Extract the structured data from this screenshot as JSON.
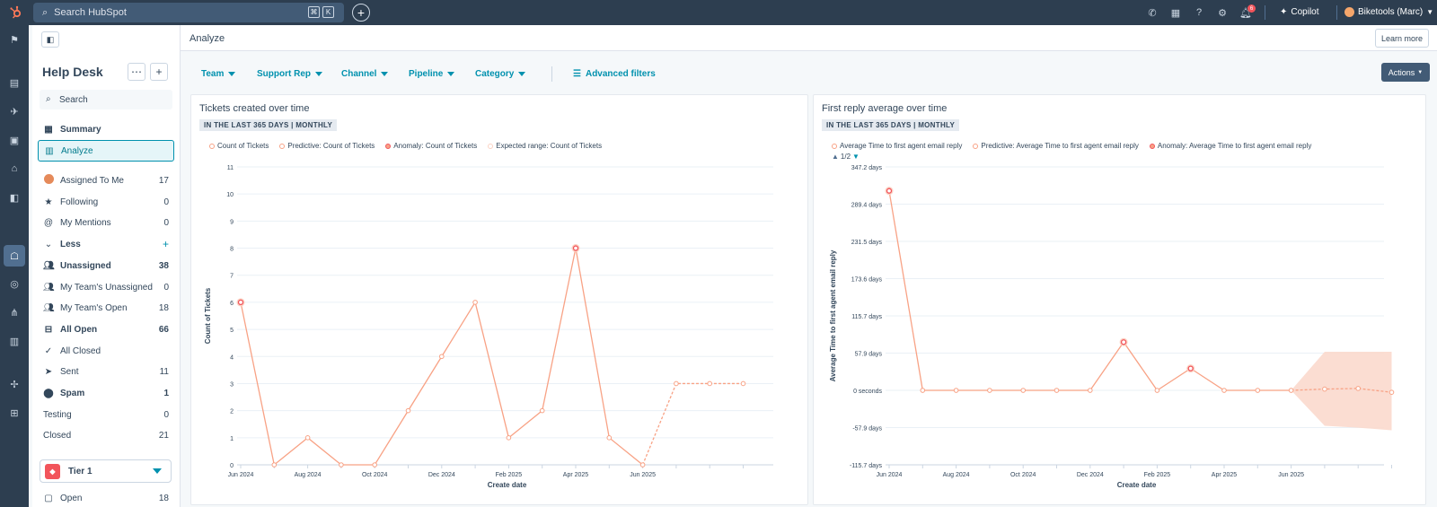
{
  "topbar": {
    "search_placeholder": "Search HubSpot",
    "kbd_cmd": "⌘",
    "kbd_k": "K",
    "notifications_count": "6",
    "copilot_label": "Copilot",
    "account_label": "Biketools (Marc)"
  },
  "sidebar": {
    "title": "Help Desk",
    "search_placeholder": "Search",
    "nav": [
      {
        "label": "Summary",
        "icon": "grid-icon"
      },
      {
        "label": "Analyze",
        "icon": "chart-icon"
      }
    ],
    "views": [
      {
        "label": "Assigned To Me",
        "count": "17",
        "icon": "avatar"
      },
      {
        "label": "Following",
        "count": "0",
        "icon": "star-icon"
      },
      {
        "label": "My Mentions",
        "count": "0",
        "icon": "at-icon"
      }
    ],
    "less_label": "Less",
    "inbox_views": [
      {
        "label": "Unassigned",
        "count": "38",
        "bold": true,
        "icon": "users-icon"
      },
      {
        "label": "My Team's Unassigned",
        "count": "0",
        "bold": false,
        "icon": "users-icon"
      },
      {
        "label": "My Team's Open",
        "count": "18",
        "bold": false,
        "icon": "users-icon"
      },
      {
        "label": "All Open",
        "count": "66",
        "bold": true,
        "icon": "inbox-icon"
      },
      {
        "label": "All Closed",
        "count": "",
        "bold": false,
        "icon": "check-icon"
      },
      {
        "label": "Sent",
        "count": "11",
        "bold": false,
        "icon": "send-icon"
      },
      {
        "label": "Spam",
        "count": "1",
        "bold": true,
        "icon": "spam-icon"
      },
      {
        "label": "Testing",
        "count": "0",
        "bold": false,
        "icon": ""
      },
      {
        "label": "Closed",
        "count": "21",
        "bold": false,
        "icon": ""
      }
    ],
    "tier_label": "Tier 1",
    "partial_label": "Open",
    "partial_count": "18"
  },
  "main": {
    "page_title": "Analyze",
    "learn_more": "Learn more",
    "filters": [
      "Team",
      "Support Rep",
      "Channel",
      "Pipeline",
      "Category"
    ],
    "advanced_filters": "Advanced filters",
    "actions_label": "Actions"
  },
  "chart_data": [
    {
      "type": "line",
      "title": "Tickets created over time",
      "subtitle": "IN THE LAST 365 DAYS | MONTHLY",
      "xlabel": "Create date",
      "ylabel": "Count of Tickets",
      "legend": [
        "Count of Tickets",
        "Predictive: Count of Tickets",
        "Anomaly: Count of Tickets",
        "Expected range: Count of Tickets"
      ],
      "yticks": [
        "0",
        "1",
        "2",
        "3",
        "4",
        "5",
        "6",
        "7",
        "8",
        "9",
        "10",
        "11"
      ],
      "ylim": [
        0,
        11
      ],
      "x_tick_labels": [
        "Jun 2024",
        "Aug 2024",
        "Oct 2024",
        "Dec 2024",
        "Feb 2025",
        "Apr 2025",
        "Jun 2025"
      ],
      "values": [
        6,
        0,
        1,
        0,
        0,
        2,
        4,
        6,
        1,
        2,
        8,
        1,
        0
      ],
      "predicted": [
        3,
        3,
        3
      ],
      "anomaly_indices": [
        0,
        10
      ]
    },
    {
      "type": "line",
      "title": "First reply average over time",
      "subtitle": "IN THE LAST 365 DAYS | MONTHLY",
      "xlabel": "Create date",
      "ylabel": "Average Time to first agent email reply",
      "legend": [
        "Average Time to first agent email reply",
        "Predictive: Average Time to first agent email reply",
        "Anomaly: Average Time to first agent email reply"
      ],
      "legend_pager": "1/2",
      "yticks": [
        "-115.7 days",
        "-57.9 days",
        "0 seconds",
        "57.9 days",
        "115.7 days",
        "173.6 days",
        "231.5 days",
        "289.4 days",
        "347.2 days"
      ],
      "ylim": [
        -115.7,
        347.2
      ],
      "x_tick_labels": [
        "Jun 2024",
        "Aug 2024",
        "Oct 2024",
        "Dec 2024",
        "Feb 2025",
        "Apr 2025",
        "Jun 2025"
      ],
      "values": [
        310,
        0,
        0,
        0,
        0,
        0,
        0,
        75,
        0,
        34,
        0,
        0,
        0
      ],
      "predicted": [
        2,
        3,
        -3
      ],
      "range_upper": [
        0,
        60,
        60,
        60
      ],
      "range_lower": [
        0,
        -55,
        -58,
        -62
      ],
      "anomaly_indices": [
        0,
        7,
        9
      ]
    }
  ]
}
